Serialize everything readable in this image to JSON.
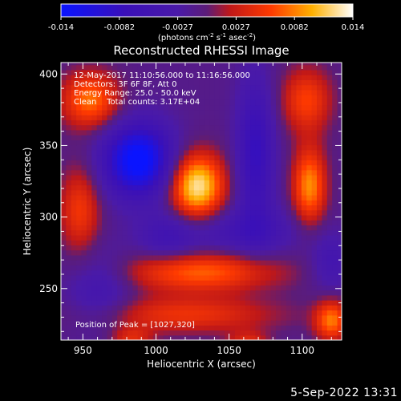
{
  "chart_data": {
    "type": "heatmap",
    "title": "Reconstructed RHESSI Image",
    "xlabel": "Heliocentric X (arcsec)",
    "ylabel": "Heliocentric Y (arcsec)",
    "xlim": [
      935,
      1127
    ],
    "ylim": [
      214,
      408
    ],
    "x_ticks": [
      950,
      1000,
      1050,
      1100
    ],
    "y_ticks": [
      250,
      300,
      350,
      400
    ],
    "colorbar": {
      "min": -0.014,
      "max": 0.014,
      "ticks": [
        "-0.014",
        "-0.0082",
        "-0.0027",
        "0.0027",
        "0.0082",
        "0.014"
      ],
      "units_label": "(photons cm",
      "units_parts": [
        "(photons cm",
        "-2",
        " s",
        "-1",
        " asec",
        "-2",
        ")"
      ]
    },
    "annotations": [
      "12-May-2017 11:10:56.000 to 11:16:56.000",
      "Detectors: 3F 6F 8F, Att 0",
      "Energy Range: 25.0 - 50.0 keV",
      "Clean    Total counts: 3.17E+04"
    ],
    "peak_label": "Position of Peak = [1027,320]",
    "colormap": "rainbow-purple-red-yellow-white",
    "sources": [
      {
        "x": 1028,
        "y": 322,
        "amp": 0.014,
        "sx": 13,
        "sy": 16
      },
      {
        "x": 1105,
        "y": 322,
        "amp": 0.01,
        "sx": 8,
        "sy": 19
      },
      {
        "x": 955,
        "y": 382,
        "amp": 0.009,
        "sx": 14,
        "sy": 14
      },
      {
        "x": 1103,
        "y": 382,
        "amp": 0.007,
        "sx": 12,
        "sy": 16
      },
      {
        "x": 1030,
        "y": 262,
        "amp": 0.0085,
        "sx": 38,
        "sy": 10
      },
      {
        "x": 1020,
        "y": 232,
        "amp": 0.006,
        "sx": 45,
        "sy": 9
      },
      {
        "x": 948,
        "y": 305,
        "amp": 0.0065,
        "sx": 10,
        "sy": 22
      },
      {
        "x": 1120,
        "y": 228,
        "amp": 0.009,
        "sx": 8,
        "sy": 10
      },
      {
        "x": 983,
        "y": 215,
        "amp": 0.005,
        "sx": 10,
        "sy": 6
      },
      {
        "x": 1063,
        "y": 212,
        "amp": 0.005,
        "sx": 10,
        "sy": 6
      },
      {
        "x": 988,
        "y": 340,
        "amp": -0.014,
        "sx": 17,
        "sy": 18
      },
      {
        "x": 1068,
        "y": 345,
        "amp": -0.0075,
        "sx": 9,
        "sy": 36
      },
      {
        "x": 1060,
        "y": 290,
        "amp": -0.0045,
        "sx": 28,
        "sy": 12
      },
      {
        "x": 1008,
        "y": 286,
        "amp": -0.0045,
        "sx": 14,
        "sy": 12
      },
      {
        "x": 962,
        "y": 250,
        "amp": -0.0045,
        "sx": 16,
        "sy": 20
      },
      {
        "x": 1120,
        "y": 268,
        "amp": -0.004,
        "sx": 10,
        "sy": 14
      }
    ]
  },
  "footer": {
    "timestamp": "5-Sep-2022 13:31"
  }
}
